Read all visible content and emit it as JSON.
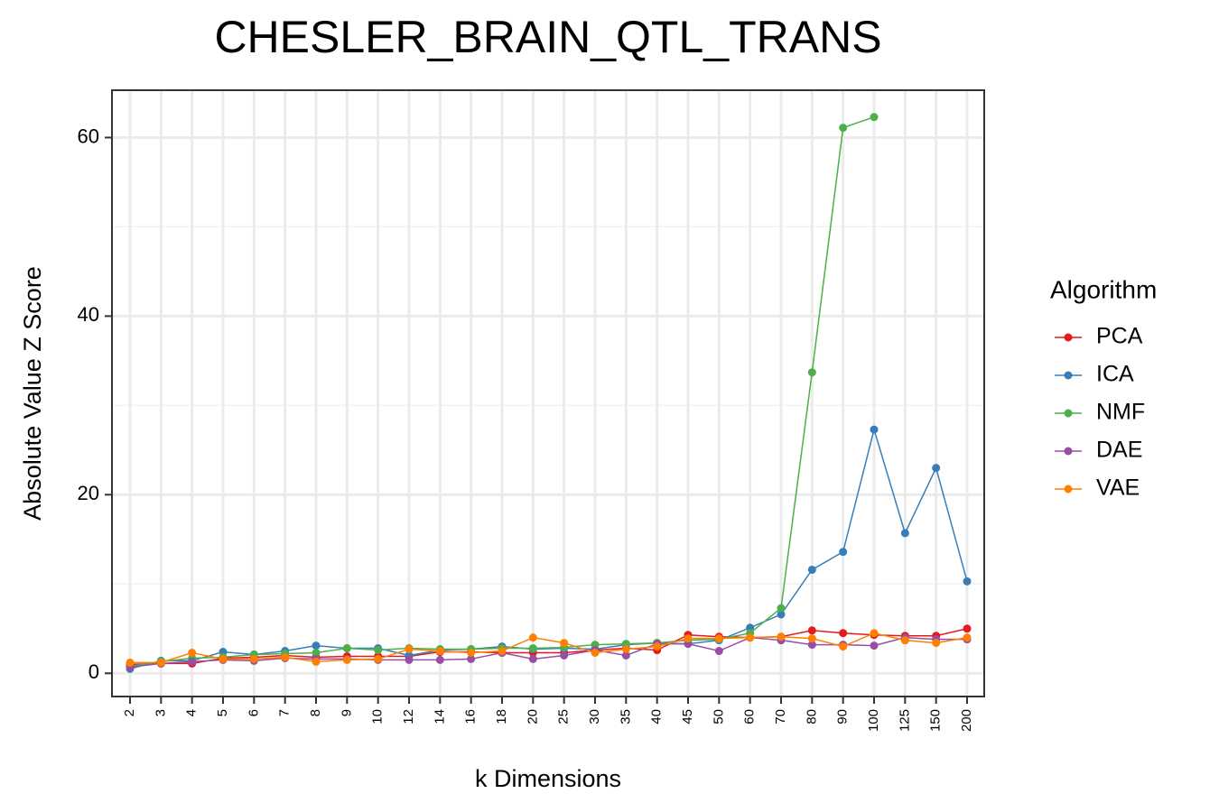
{
  "chart_data": {
    "type": "line",
    "title": "CHESLER_BRAIN_QTL_TRANS",
    "x_label": "k Dimensions",
    "y_label": "Absolute Value Z Score",
    "legend_title": "Algorithm",
    "legend_position": "right",
    "grid": true,
    "categories": [
      "2",
      "3",
      "4",
      "5",
      "6",
      "7",
      "8",
      "9",
      "10",
      "12",
      "14",
      "16",
      "18",
      "20",
      "25",
      "30",
      "35",
      "40",
      "45",
      "50",
      "60",
      "70",
      "80",
      "90",
      "100",
      "125",
      "150",
      "200"
    ],
    "ylim": [
      -2.6,
      65.3
    ],
    "yticks": [
      0,
      20,
      40,
      60
    ],
    "yminor_ticks": [
      10,
      30,
      50
    ],
    "series": [
      {
        "name": "PCA",
        "color": "#e41a1c",
        "values": [
          1.0,
          1.1,
          1.1,
          1.7,
          1.8,
          2.0,
          1.8,
          1.9,
          1.9,
          1.9,
          2.4,
          2.4,
          2.3,
          2.3,
          2.3,
          2.6,
          2.8,
          2.6,
          4.3,
          4.1,
          4.0,
          4.1,
          4.8,
          4.5,
          4.3,
          4.2,
          4.2,
          5.0
        ]
      },
      {
        "name": "ICA",
        "color": "#377eb8",
        "values": [
          0.5,
          1.4,
          1.4,
          2.4,
          2.1,
          2.5,
          3.1,
          2.8,
          2.8,
          2.0,
          2.6,
          2.7,
          3.0,
          2.7,
          2.8,
          2.7,
          3.2,
          3.4,
          3.3,
          3.7,
          5.1,
          6.6,
          11.6,
          13.6,
          27.3,
          15.7,
          23.0,
          10.3
        ]
      },
      {
        "name": "NMF",
        "color": "#4daf4a",
        "values": [
          0.8,
          1.3,
          1.7,
          1.8,
          2.1,
          2.2,
          2.3,
          2.8,
          2.6,
          2.8,
          2.7,
          2.7,
          2.8,
          2.8,
          2.9,
          3.2,
          3.3,
          3.4,
          3.7,
          3.8,
          4.5,
          7.3,
          33.7,
          61.1,
          62.3,
          null,
          null,
          null
        ]
      },
      {
        "name": "DAE",
        "color": "#984ea3",
        "values": [
          0.7,
          1.1,
          1.3,
          1.5,
          1.4,
          1.7,
          1.6,
          1.6,
          1.5,
          1.5,
          1.5,
          1.6,
          2.3,
          1.6,
          2.0,
          2.6,
          2.0,
          3.3,
          3.3,
          2.5,
          4.0,
          3.7,
          3.2,
          3.2,
          3.1,
          4.0,
          3.8,
          3.8
        ]
      },
      {
        "name": "VAE",
        "color": "#ff7f00",
        "values": [
          1.2,
          1.2,
          2.3,
          1.6,
          1.6,
          1.8,
          1.3,
          1.5,
          1.6,
          2.7,
          2.5,
          2.3,
          2.5,
          4.0,
          3.4,
          2.3,
          2.7,
          3.0,
          3.9,
          3.9,
          4.0,
          4.1,
          3.9,
          3.0,
          4.5,
          3.7,
          3.4,
          4.0
        ]
      }
    ]
  }
}
